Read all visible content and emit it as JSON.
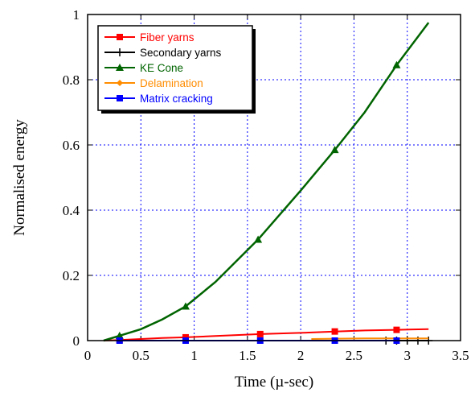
{
  "chart_data": {
    "type": "line",
    "title": "",
    "xlabel": "Time (µ-sec)",
    "ylabel": "Normalised energy",
    "xlim": [
      0,
      3.5
    ],
    "ylim": [
      0,
      1
    ],
    "xticks": [
      0,
      0.5,
      1,
      1.5,
      2,
      2.5,
      3,
      3.5
    ],
    "xtick_labels": [
      "0",
      "0.5",
      "1",
      "1.5",
      "2",
      "2.5",
      "3",
      "3.5"
    ],
    "yticks": [
      0,
      0.2,
      0.4,
      0.6,
      0.8,
      1
    ],
    "ytick_labels": [
      "0",
      "0.2",
      "0.4",
      "0.6",
      "0.8",
      "1"
    ],
    "grid": true,
    "grid_style": "dotted",
    "grid_color": "#0000ff",
    "legend_position": "top-left",
    "series": [
      {
        "name": "Fiber yarns",
        "color": "#ff0000",
        "marker": "square",
        "x": [
          0.15,
          0.3,
          0.5,
          0.7,
          0.92,
          1.2,
          1.4,
          1.62,
          1.9,
          2.1,
          2.32,
          2.6,
          2.9,
          3.2
        ],
        "y": [
          0.0,
          0.002,
          0.005,
          0.008,
          0.01,
          0.014,
          0.017,
          0.02,
          0.023,
          0.025,
          0.028,
          0.031,
          0.033,
          0.035
        ],
        "marker_x": [
          0.3,
          0.92,
          1.62,
          2.32,
          2.9
        ]
      },
      {
        "name": "Secondary yarns",
        "color": "#000000",
        "marker": "plus",
        "x": [
          2.8,
          2.9,
          3.0,
          3.1,
          3.2
        ],
        "y": [
          0.0,
          0.0,
          0.0,
          0.0,
          0.0
        ],
        "marker_x": [
          2.8,
          2.9,
          3.0,
          3.1,
          3.2
        ]
      },
      {
        "name": "KE Cone",
        "color": "#006400",
        "marker": "triangle",
        "x": [
          0.15,
          0.3,
          0.5,
          0.7,
          0.92,
          1.2,
          1.6,
          2.0,
          2.32,
          2.6,
          2.9,
          3.2
        ],
        "y": [
          0.0,
          0.015,
          0.035,
          0.065,
          0.105,
          0.18,
          0.31,
          0.46,
          0.585,
          0.7,
          0.845,
          0.975
        ],
        "marker_x": [
          0.3,
          0.92,
          1.6,
          2.32,
          2.9
        ]
      },
      {
        "name": "Delamination",
        "color": "#ff8c00",
        "marker": "diamond",
        "x": [
          2.1,
          2.32,
          2.6,
          2.9,
          3.2
        ],
        "y": [
          0.005,
          0.006,
          0.007,
          0.007,
          0.007
        ],
        "marker_x": []
      },
      {
        "name": "Matrix cracking",
        "color": "#0000ff",
        "marker": "square",
        "x": [
          0.3,
          0.92,
          1.62,
          2.32,
          2.9
        ],
        "y": [
          0.0,
          0.0,
          0.0,
          0.0,
          0.0
        ],
        "marker_x": [
          0.3,
          0.92,
          1.62,
          2.32,
          2.9
        ]
      }
    ]
  }
}
